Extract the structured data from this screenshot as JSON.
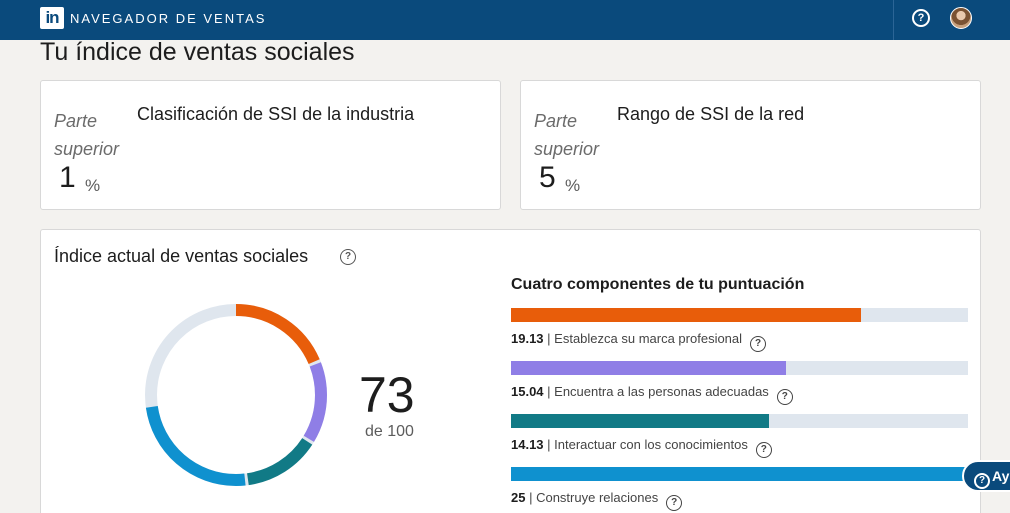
{
  "header": {
    "logo_text": "in",
    "brand": "NAVEGADOR DE VENTAS",
    "help_icon": "help-circle-icon",
    "help_glyph": "?",
    "avatar_icon": "user-avatar"
  },
  "page": {
    "title": "Tu índice de ventas sociales"
  },
  "industry_card": {
    "sub_label": "Parte superior",
    "title": "Clasificación de SSI de la industria",
    "value": "1",
    "unit": "%"
  },
  "network_card": {
    "sub_label": "Parte superior",
    "title": "Rango de SSI de la red",
    "value": "5",
    "unit": "%"
  },
  "ssi": {
    "title": "Índice actual de ventas sociales",
    "help_glyph": "?",
    "score": "73",
    "score_sub": "de 100",
    "components_title": "Cuatro componentes de tu puntuación",
    "components": [
      {
        "value": "19.13",
        "label": "| Establezca su marca profesional",
        "fraction": 0.7652,
        "color": "#e85d0a"
      },
      {
        "value": "15.04",
        "label": "| Encuentra a las personas adecuadas",
        "fraction": 0.6016,
        "color": "#8f7ee6"
      },
      {
        "value": "14.13",
        "label": "| Interactuar con los conocimientos",
        "fraction": 0.5652,
        "color": "#117a86"
      },
      {
        "value": "25",
        "label": "| Construye relaciones",
        "fraction": 1.0,
        "color": "#0f91cf"
      }
    ],
    "max_per_component": 25,
    "track_color": "#dfe6ee"
  },
  "help_button": {
    "glyph": "?",
    "label": "Ay"
  }
}
